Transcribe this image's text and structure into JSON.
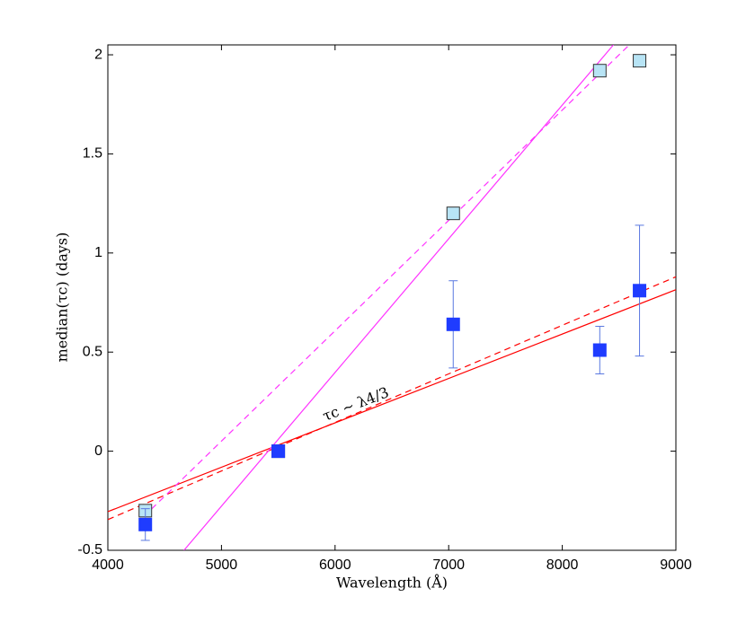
{
  "chart_data": {
    "type": "scatter",
    "x_label": "Wavelength (Å)",
    "y_label": "median(τc) (days)",
    "annotation": "τc ∼ λ4/3",
    "xlim": [
      4000,
      9000
    ],
    "ylim": [
      -0.5,
      2.05
    ],
    "xticks": [
      4000,
      5000,
      6000,
      7000,
      8000,
      9000
    ],
    "yticks": [
      -0.5,
      0,
      0.5,
      1,
      1.5,
      2
    ],
    "series": [
      {
        "color": "#b8e4f5",
        "x": [
          4330,
          5500,
          7040,
          8330,
          8680
        ],
        "values": [
          -0.3,
          0,
          1.2,
          1.92,
          1.97
        ]
      },
      {
        "color": "#1f3cff",
        "x": [
          4330,
          5500,
          7040,
          8330,
          8680
        ],
        "values": [
          -0.37,
          0,
          0.64,
          0.51,
          0.81
        ],
        "errors": [
          0.08,
          0,
          0.22,
          0.12,
          0.33
        ]
      }
    ],
    "lines": [
      {
        "color": "#ff0000",
        "dash": false,
        "x": [
          4000,
          9000
        ],
        "values": [
          -0.305,
          0.815
        ]
      },
      {
        "color": "#ff0000",
        "dash": true,
        "x": [
          4000,
          9000
        ],
        "values": [
          -0.345,
          0.88
        ]
      },
      {
        "color": "#ff33ff",
        "dash": false,
        "x": [
          4670,
          8450
        ],
        "values": [
          -0.5,
          2.05
        ]
      },
      {
        "color": "#ff33ff",
        "dash": true,
        "x": [
          4316,
          8590
        ],
        "values": [
          -0.33,
          2.05
        ]
      }
    ]
  }
}
